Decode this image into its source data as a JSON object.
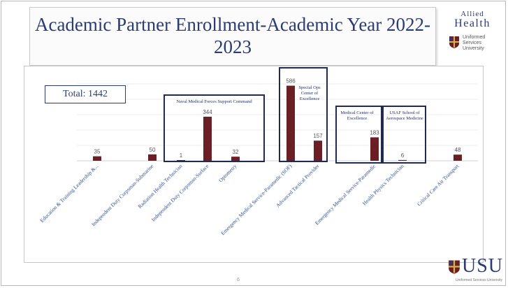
{
  "slide": {
    "title": "Academic Partner Enrollment-Academic Year 2022-2023",
    "page_number": "6"
  },
  "logo": {
    "allied_line1": "Allied",
    "allied_line2": "Health",
    "usu_line1": "Uniformed",
    "usu_line2": "Services",
    "usu_line3": "University",
    "bottom_mark": "USU",
    "bottom_sub": "Uniformed Services University"
  },
  "total": {
    "label": "Total:",
    "value": "1442"
  },
  "groups": [
    {
      "label": "Naval Medical Forces Support Command"
    },
    {
      "label": "Special Ops Center of Excellence"
    },
    {
      "label": "Medical Center of Excellence"
    },
    {
      "label": "USAF School of Aerospace Medicine"
    }
  ],
  "colors": {
    "bar": "#6b1f24",
    "title": "#2b3b73",
    "box": "#1f2a55",
    "axis_label": "#2f4f8f"
  },
  "chart_data": {
    "type": "bar",
    "title": "",
    "xlabel": "",
    "ylabel": "",
    "ylim": [
      0,
      600
    ],
    "grid": true,
    "categories": [
      "Education & Training Leadership &...",
      "Independent Duty Corpsman-Submarine",
      "Radiation Health Technician",
      "Independent Duty Corpsman-Surface",
      "Optometry",
      "Emergency Medical Service-Paramedic (SOF)",
      "Advanced Tactical Provider",
      "Emergency Medical Service-Paramedic",
      "Health Physics Technician",
      "Critical Care Air Transport"
    ],
    "values": [
      35,
      50,
      1,
      344,
      32,
      586,
      157,
      183,
      6,
      48
    ]
  }
}
